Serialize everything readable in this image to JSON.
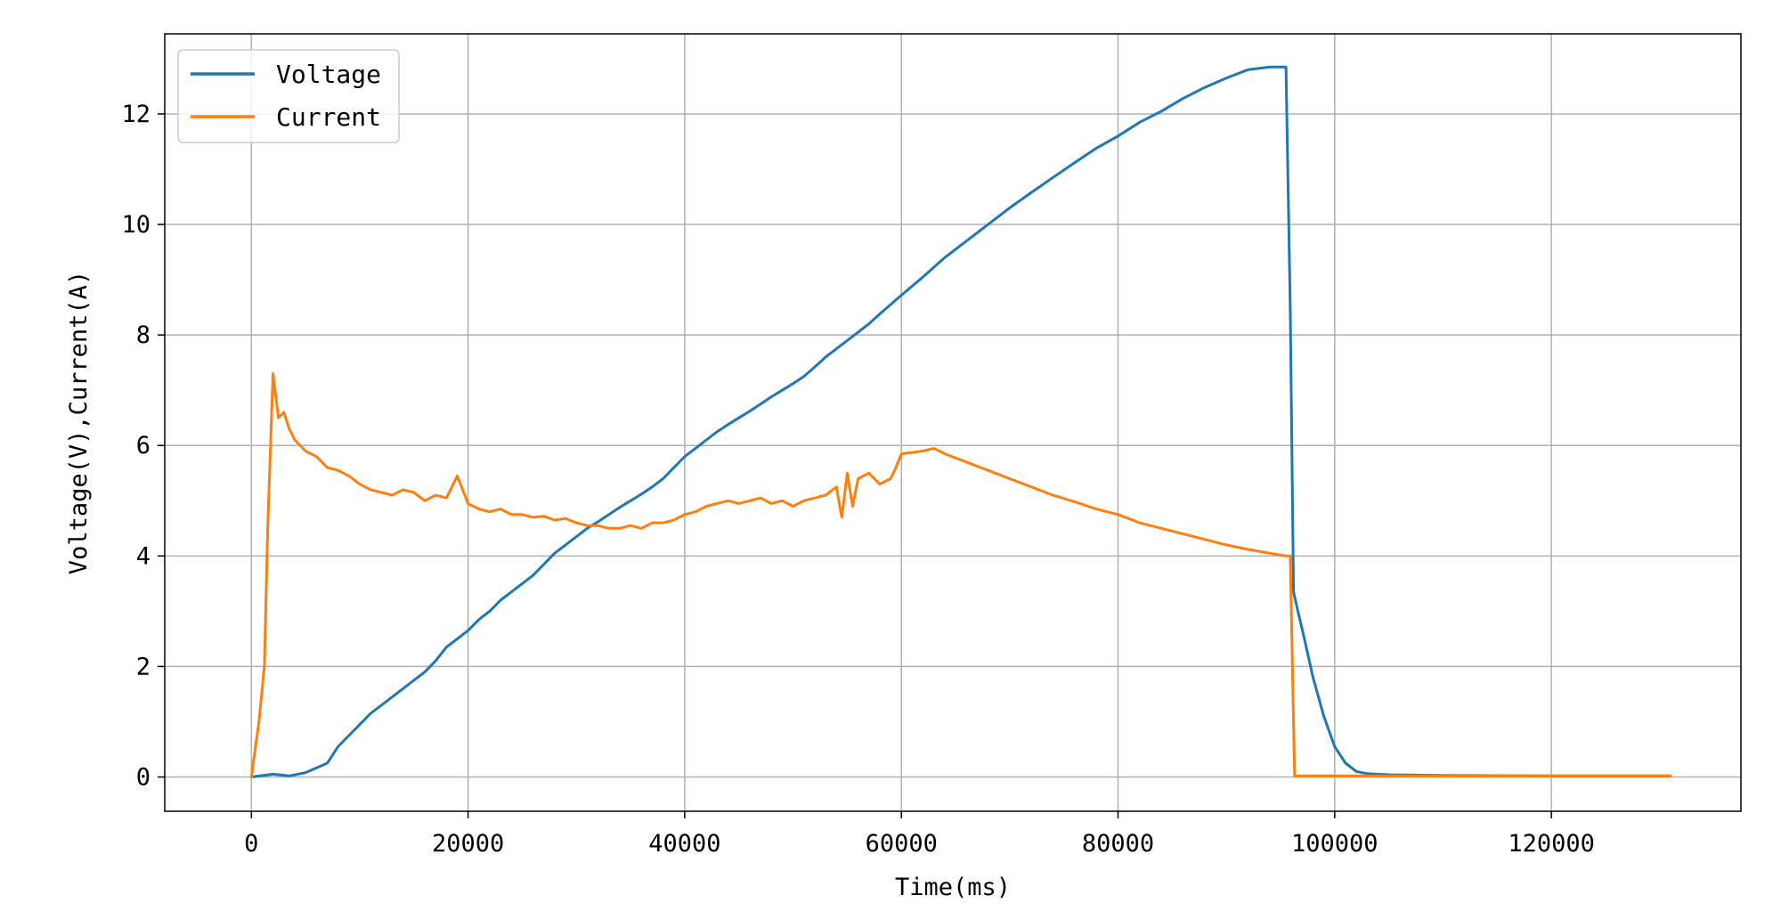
{
  "chart_data": {
    "type": "line",
    "title": "",
    "xlabel": "Time(ms)",
    "ylabel": "Voltage(V),Current(A)",
    "xlim": [
      -8000,
      137500
    ],
    "ylim": [
      -0.62,
      13.45
    ],
    "x_ticks": [
      0,
      20000,
      40000,
      60000,
      80000,
      100000,
      120000
    ],
    "x_tick_labels": [
      "0",
      "20000",
      "40000",
      "60000",
      "80000",
      "100000",
      "120000"
    ],
    "y_ticks": [
      0,
      2,
      4,
      6,
      8,
      10,
      12
    ],
    "y_tick_labels": [
      "0",
      "2",
      "4",
      "6",
      "8",
      "10",
      "12"
    ],
    "grid": true,
    "legend_position": "top-left",
    "series": [
      {
        "name": "Voltage",
        "color": "#1f77b4",
        "x": [
          0,
          2000,
          3500,
          5000,
          7000,
          8000,
          9000,
          10000,
          11000,
          12000,
          13000,
          14000,
          15000,
          16000,
          17000,
          18000,
          19000,
          20000,
          21000,
          22000,
          23000,
          24000,
          25000,
          26000,
          27000,
          28000,
          29000,
          30000,
          31000,
          32000,
          33000,
          34000,
          35000,
          36000,
          37000,
          38000,
          39000,
          40000,
          41000,
          42000,
          43000,
          44000,
          45000,
          46000,
          47000,
          48000,
          49000,
          50000,
          51000,
          52000,
          53000,
          54000,
          55000,
          56000,
          57000,
          58000,
          59000,
          60000,
          62000,
          64000,
          66000,
          68000,
          70000,
          72000,
          74000,
          76000,
          78000,
          80000,
          82000,
          84000,
          86000,
          88000,
          90000,
          92000,
          94000,
          95500,
          95900,
          96200,
          96600,
          97200,
          98000,
          99000,
          100000,
          101000,
          102000,
          103000,
          105000,
          110000,
          120000,
          131000
        ],
        "y": [
          0.0,
          0.05,
          0.02,
          0.08,
          0.25,
          0.55,
          0.75,
          0.95,
          1.15,
          1.3,
          1.45,
          1.6,
          1.75,
          1.9,
          2.1,
          2.35,
          2.5,
          2.65,
          2.85,
          3.0,
          3.2,
          3.35,
          3.5,
          3.65,
          3.85,
          4.05,
          4.2,
          4.35,
          4.5,
          4.62,
          4.75,
          4.88,
          5.0,
          5.12,
          5.25,
          5.4,
          5.6,
          5.8,
          5.95,
          6.1,
          6.25,
          6.38,
          6.5,
          6.62,
          6.75,
          6.88,
          7.0,
          7.12,
          7.25,
          7.42,
          7.6,
          7.75,
          7.9,
          8.05,
          8.2,
          8.38,
          8.55,
          8.72,
          9.05,
          9.4,
          9.7,
          10.0,
          10.3,
          10.58,
          10.85,
          11.12,
          11.38,
          11.6,
          11.85,
          12.05,
          12.28,
          12.48,
          12.65,
          12.8,
          12.85,
          12.85,
          8.5,
          3.35,
          3.0,
          2.5,
          1.8,
          1.1,
          0.55,
          0.25,
          0.1,
          0.06,
          0.04,
          0.03,
          0.02,
          0.02
        ]
      },
      {
        "name": "Current",
        "color": "#ff7f0e",
        "x": [
          0,
          700,
          1200,
          1500,
          2000,
          2500,
          3000,
          3500,
          4000,
          5000,
          6000,
          7000,
          8000,
          9000,
          10000,
          11000,
          12000,
          13000,
          14000,
          15000,
          16000,
          17000,
          18000,
          19000,
          20000,
          21000,
          22000,
          23000,
          24000,
          25000,
          26000,
          27000,
          28000,
          29000,
          30000,
          31000,
          32000,
          33000,
          34000,
          35000,
          36000,
          37000,
          38000,
          39000,
          40000,
          41000,
          42000,
          43000,
          44000,
          45000,
          46000,
          47000,
          48000,
          49000,
          50000,
          51000,
          52000,
          53000,
          54000,
          54500,
          55000,
          55500,
          56000,
          57000,
          58000,
          59000,
          59500,
          60000,
          62000,
          63000,
          64000,
          66000,
          68000,
          70000,
          72000,
          74000,
          76000,
          78000,
          80000,
          82000,
          84000,
          86000,
          88000,
          90000,
          92000,
          94000,
          95500,
          95900,
          96300,
          100000,
          110000,
          120000,
          131000
        ],
        "y": [
          0.0,
          1.0,
          2.0,
          4.5,
          7.3,
          6.5,
          6.6,
          6.3,
          6.1,
          5.9,
          5.8,
          5.6,
          5.55,
          5.45,
          5.3,
          5.2,
          5.15,
          5.1,
          5.2,
          5.15,
          5.0,
          5.1,
          5.05,
          5.45,
          4.95,
          4.85,
          4.8,
          4.85,
          4.75,
          4.75,
          4.7,
          4.72,
          4.65,
          4.68,
          4.6,
          4.55,
          4.55,
          4.5,
          4.5,
          4.55,
          4.5,
          4.6,
          4.6,
          4.65,
          4.75,
          4.8,
          4.9,
          4.95,
          5.0,
          4.95,
          5.0,
          5.05,
          4.95,
          5.0,
          4.9,
          5.0,
          5.05,
          5.1,
          5.25,
          4.7,
          5.5,
          4.9,
          5.4,
          5.5,
          5.3,
          5.4,
          5.6,
          5.85,
          5.9,
          5.95,
          5.85,
          5.7,
          5.55,
          5.4,
          5.25,
          5.1,
          4.98,
          4.85,
          4.75,
          4.6,
          4.5,
          4.4,
          4.3,
          4.2,
          4.12,
          4.05,
          4.0,
          4.0,
          0.02,
          0.02,
          0.02,
          0.02,
          0.02
        ]
      }
    ]
  }
}
